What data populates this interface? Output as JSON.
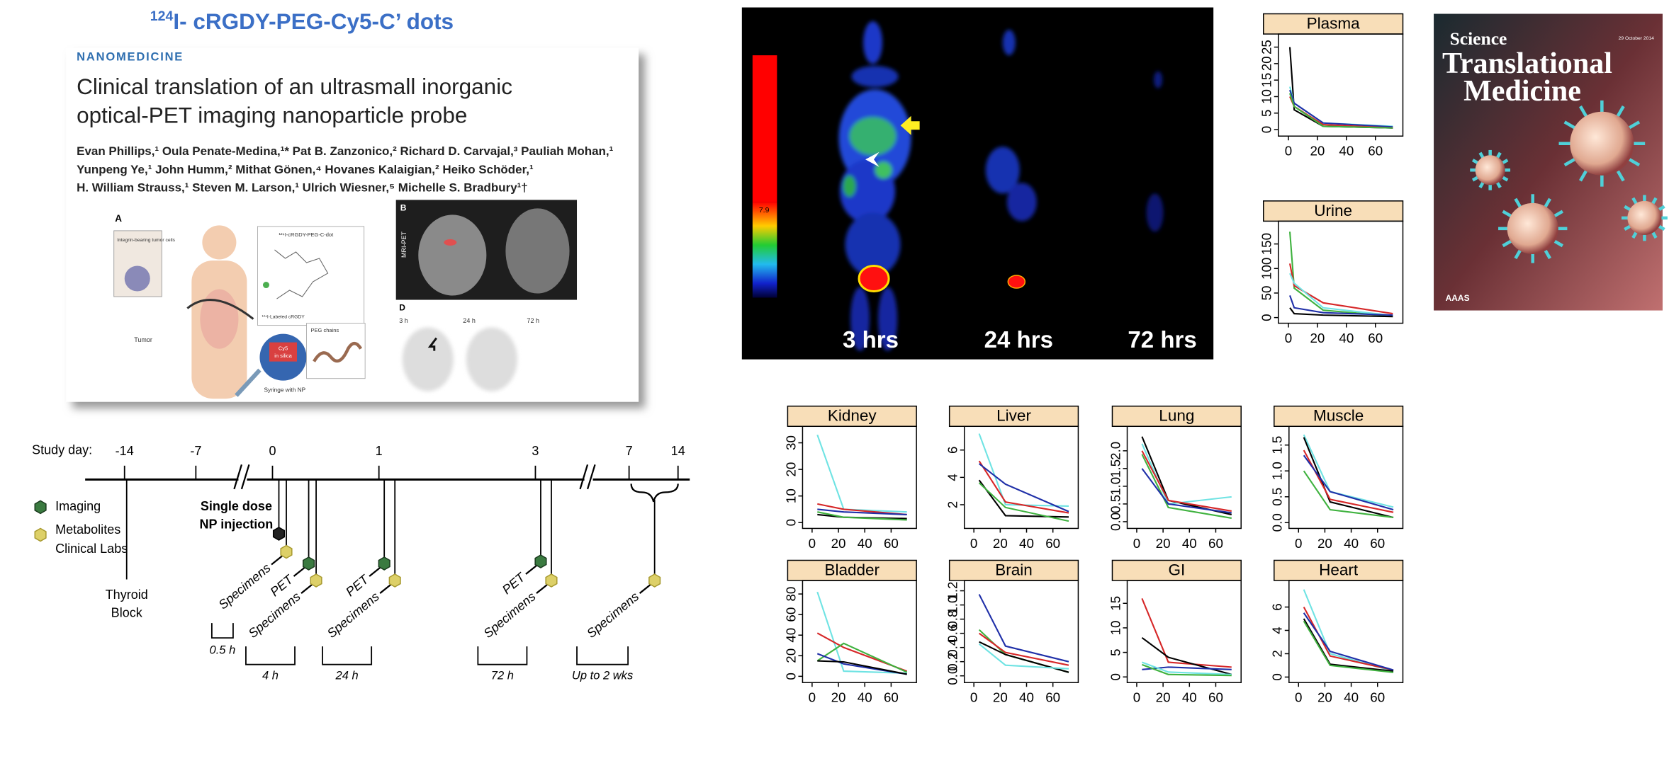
{
  "title": {
    "sup": "124",
    "text": "I- cRGDY-PEG-Cy5-C’ dots"
  },
  "paper": {
    "section": "NANOMEDICINE",
    "title_lines": [
      "Clinical translation of an ultrasmall inorganic",
      "optical-PET imaging nanoparticle probe"
    ],
    "author_lines": [
      "Evan Phillips,¹ Oula Penate-Medina,¹* Pat B. Zanzonico,² Richard D. Carvajal,³ Pauliah Mohan,¹",
      "Yunpeng Ye,¹ John Humm,² Mithat Gönen,⁴ Hovanes Kalaigian,² Heiko Schöder,¹",
      "H. William Strauss,¹ Steven M. Larson,¹ Ulrich Wiesner,⁵ Michelle S. Bradbury¹†"
    ],
    "figure": {
      "panel_a": "A",
      "tumor_cells": "Integrin-bearing tumor cells",
      "dot": "¹²⁴I-cRGDY-PEG-C-dot",
      "labeled": "¹²⁴I-Labeled cRGDY",
      "core": [
        "Cy5",
        "in silica"
      ],
      "peg": "PEG chains",
      "tumor": "Tumor",
      "syringe": "Syringe with NP",
      "panel_b": "B",
      "mri": "MRI-PET",
      "panel_d": "D",
      "times": [
        "3 h",
        "24 h",
        "72 h"
      ]
    }
  },
  "pet": {
    "scale_label": "7.9",
    "time_labels": [
      "3 hrs",
      "24 hrs",
      "72 hrs"
    ]
  },
  "cover": {
    "line1": "Science",
    "line2": "Translational",
    "line3": "Medicine",
    "date": "29 October 2014",
    "publisher": "AAAS"
  },
  "timeline": {
    "axis_label": "Study day:",
    "days": [
      "-14",
      "-7",
      "0",
      "1",
      "3",
      "7",
      "14"
    ],
    "legend": [
      "Imaging",
      "Metabolites",
      "Clinical Labs"
    ],
    "thyroid": [
      "Thyroid",
      "Block"
    ],
    "injection": [
      "Single dose",
      "NP injection"
    ],
    "events": [
      "Specimens",
      "PET",
      "Specimens",
      "PET",
      "Specimens",
      "PET",
      "Specimens",
      "Specimens"
    ],
    "durations": [
      "0.5 h",
      "4 h",
      "24 h",
      "72 h",
      "Up to 2 wks"
    ]
  },
  "chart_data": [
    {
      "type": "line",
      "title": "Plasma",
      "x": [
        1,
        4,
        24,
        72
      ],
      "xlim": [
        -4,
        76
      ],
      "xticks": [
        0,
        20,
        40,
        60
      ],
      "ylim": [
        -1,
        28
      ],
      "yticks": [
        0,
        5,
        10,
        15,
        20,
        25
      ],
      "series": [
        {
          "color": "#000000",
          "values": [
            25,
            6,
            1,
            0.5
          ]
        },
        {
          "color": "#6fe3e3",
          "values": [
            13,
            8,
            2,
            1
          ]
        },
        {
          "color": "#1f2fa8",
          "values": [
            12,
            8,
            2,
            0.8
          ]
        },
        {
          "color": "#d62728",
          "values": [
            10,
            7,
            1.5,
            0.5
          ]
        },
        {
          "color": "#3fb23f",
          "values": [
            11,
            7,
            1,
            0.5
          ]
        }
      ]
    },
    {
      "type": "line",
      "title": "Urine",
      "x": [
        1,
        4,
        24,
        72
      ],
      "xlim": [
        -4,
        76
      ],
      "xticks": [
        0,
        20,
        40,
        60
      ],
      "ylim": [
        -5,
        190
      ],
      "yticks": [
        0,
        50,
        100,
        150
      ],
      "series": [
        {
          "color": "#3fb23f",
          "values": [
            175,
            60,
            15,
            3
          ]
        },
        {
          "color": "#d62728",
          "values": [
            110,
            65,
            30,
            8
          ]
        },
        {
          "color": "#6fe3e3",
          "values": [
            90,
            70,
            20,
            4
          ]
        },
        {
          "color": "#1f2fa8",
          "values": [
            45,
            20,
            10,
            5
          ]
        },
        {
          "color": "#000000",
          "values": [
            20,
            8,
            5,
            2
          ]
        }
      ]
    },
    {
      "type": "line",
      "title": "Kidney",
      "x": [
        4,
        24,
        72
      ],
      "xlim": [
        -4,
        76
      ],
      "xticks": [
        0,
        20,
        40,
        60
      ],
      "ylim": [
        -1,
        35
      ],
      "yticks": [
        0,
        10,
        20,
        30
      ],
      "series": [
        {
          "color": "#6fe3e3",
          "values": [
            33,
            5,
            4
          ]
        },
        {
          "color": "#d62728",
          "values": [
            7,
            5,
            3
          ]
        },
        {
          "color": "#1f2fa8",
          "values": [
            5,
            4,
            3
          ]
        },
        {
          "color": "#000000",
          "values": [
            3,
            2,
            1.5
          ]
        },
        {
          "color": "#3fb23f",
          "values": [
            4,
            2,
            1
          ]
        }
      ]
    },
    {
      "type": "line",
      "title": "Liver",
      "x": [
        4,
        24,
        72
      ],
      "xlim": [
        -4,
        76
      ],
      "xticks": [
        0,
        20,
        40,
        60
      ],
      "ylim": [
        0.5,
        7.5
      ],
      "yticks": [
        2,
        4,
        6
      ],
      "series": [
        {
          "color": "#6fe3e3",
          "values": [
            7.2,
            2,
            1.9
          ]
        },
        {
          "color": "#d62728",
          "values": [
            5.2,
            2.2,
            1.4
          ]
        },
        {
          "color": "#1f2fa8",
          "values": [
            5,
            3.5,
            1.5
          ]
        },
        {
          "color": "#000000",
          "values": [
            3.8,
            1.2,
            1.1
          ]
        },
        {
          "color": "#3fb23f",
          "values": [
            3.6,
            1.8,
            0.8
          ]
        }
      ]
    },
    {
      "type": "line",
      "title": "Lung",
      "x": [
        4,
        24,
        72
      ],
      "xlim": [
        -4,
        76
      ],
      "xticks": [
        0,
        20,
        40,
        60
      ],
      "ylim": [
        -0.1,
        2.6
      ],
      "yticks": [
        {
          "value": 0,
          "label": "0.0"
        },
        0.5,
        {
          "value": 1,
          "label": "1.0"
        },
        1.5,
        {
          "value": 2,
          "label": "2.0"
        }
      ],
      "series": [
        {
          "color": "#000000",
          "values": [
            2.4,
            0.6,
            0.2
          ]
        },
        {
          "color": "#6fe3e3",
          "values": [
            2.2,
            0.5,
            0.7
          ]
        },
        {
          "color": "#d62728",
          "values": [
            2,
            0.6,
            0.3
          ]
        },
        {
          "color": "#3fb23f",
          "values": [
            1.9,
            0.4,
            0.1
          ]
        },
        {
          "color": "#1f2fa8",
          "values": [
            1.5,
            0.5,
            0.25
          ]
        }
      ]
    },
    {
      "type": "line",
      "title": "Muscle",
      "x": [
        4,
        24,
        72
      ],
      "xlim": [
        -4,
        76
      ],
      "xticks": [
        0,
        20,
        40,
        60
      ],
      "ylim": [
        -0.05,
        1.8
      ],
      "yticks": [
        {
          "value": 0,
          "label": "0.0"
        },
        0.5,
        {
          "value": 1,
          "label": "1.0"
        },
        1.5
      ],
      "series": [
        {
          "color": "#6fe3e3",
          "values": [
            1.7,
            0.6,
            0.3
          ]
        },
        {
          "color": "#000000",
          "values": [
            1.65,
            0.4,
            0.1
          ]
        },
        {
          "color": "#d62728",
          "values": [
            1.4,
            0.45,
            0.2
          ]
        },
        {
          "color": "#1f2fa8",
          "values": [
            1.3,
            0.6,
            0.25
          ]
        },
        {
          "color": "#3fb23f",
          "values": [
            1,
            0.25,
            0.1
          ]
        }
      ]
    },
    {
      "type": "line",
      "title": "Bladder",
      "x": [
        4,
        24,
        72
      ],
      "xlim": [
        -4,
        76
      ],
      "xticks": [
        0,
        20,
        40,
        60
      ],
      "ylim": [
        -3,
        90
      ],
      "yticks": [
        0,
        20,
        40,
        60,
        80
      ],
      "series": [
        {
          "color": "#6fe3e3",
          "values": [
            82,
            5,
            3
          ]
        },
        {
          "color": "#d62728",
          "values": [
            42,
            28,
            5
          ]
        },
        {
          "color": "#3fb23f",
          "values": [
            15,
            32,
            4
          ]
        },
        {
          "color": "#1f2fa8",
          "values": [
            22,
            12,
            2
          ]
        },
        {
          "color": "#000000",
          "values": [
            15,
            14,
            2
          ]
        }
      ]
    },
    {
      "type": "line",
      "title": "Brain",
      "x": [
        4,
        24,
        72
      ],
      "xlim": [
        -4,
        76
      ],
      "xticks": [
        0,
        20,
        40,
        60
      ],
      "ylim": [
        -0.05,
        1.3
      ],
      "yticks": [
        {
          "value": 0,
          "label": "0.0"
        },
        0.2,
        0.4,
        0.6,
        0.8,
        {
          "value": 1,
          "label": "1.0"
        },
        1.2
      ],
      "series": [
        {
          "color": "#1f2fa8",
          "values": [
            1.15,
            0.42,
            0.2
          ]
        },
        {
          "color": "#3fb23f",
          "values": [
            0.65,
            0.3,
            0.05
          ]
        },
        {
          "color": "#d62728",
          "values": [
            0.6,
            0.33,
            0.15
          ]
        },
        {
          "color": "#000000",
          "values": [
            0.48,
            0.3,
            0.05
          ]
        },
        {
          "color": "#6fe3e3",
          "values": [
            0.45,
            0.15,
            0.1
          ]
        }
      ]
    },
    {
      "type": "line",
      "title": "GI",
      "x": [
        4,
        24,
        72
      ],
      "xlim": [
        -4,
        76
      ],
      "xticks": [
        0,
        20,
        40,
        60
      ],
      "ylim": [
        -0.5,
        19
      ],
      "yticks": [
        0,
        5,
        10,
        15
      ],
      "series": [
        {
          "color": "#d62728",
          "values": [
            16,
            3,
            2
          ]
        },
        {
          "color": "#000000",
          "values": [
            8,
            4,
            0.5
          ]
        },
        {
          "color": "#1f2fa8",
          "values": [
            1.5,
            2,
            1.5
          ]
        },
        {
          "color": "#6fe3e3",
          "values": [
            3,
            1,
            0.5
          ]
        },
        {
          "color": "#3fb23f",
          "values": [
            2.5,
            0.5,
            0.3
          ]
        }
      ]
    },
    {
      "type": "line",
      "title": "Heart",
      "x": [
        4,
        24,
        72
      ],
      "xlim": [
        -4,
        76
      ],
      "xticks": [
        0,
        20,
        40,
        60
      ],
      "ylim": [
        -0.2,
        8
      ],
      "yticks": [
        0,
        2,
        4,
        6
      ],
      "series": [
        {
          "color": "#6fe3e3",
          "values": [
            7.5,
            2,
            0.5
          ]
        },
        {
          "color": "#d62728",
          "values": [
            6,
            1.8,
            0.6
          ]
        },
        {
          "color": "#1f2fa8",
          "values": [
            5.5,
            2.2,
            0.6
          ]
        },
        {
          "color": "#000000",
          "values": [
            5,
            1.1,
            0.5
          ]
        },
        {
          "color": "#3fb23f",
          "values": [
            4.8,
            1,
            0.4
          ]
        }
      ]
    }
  ]
}
